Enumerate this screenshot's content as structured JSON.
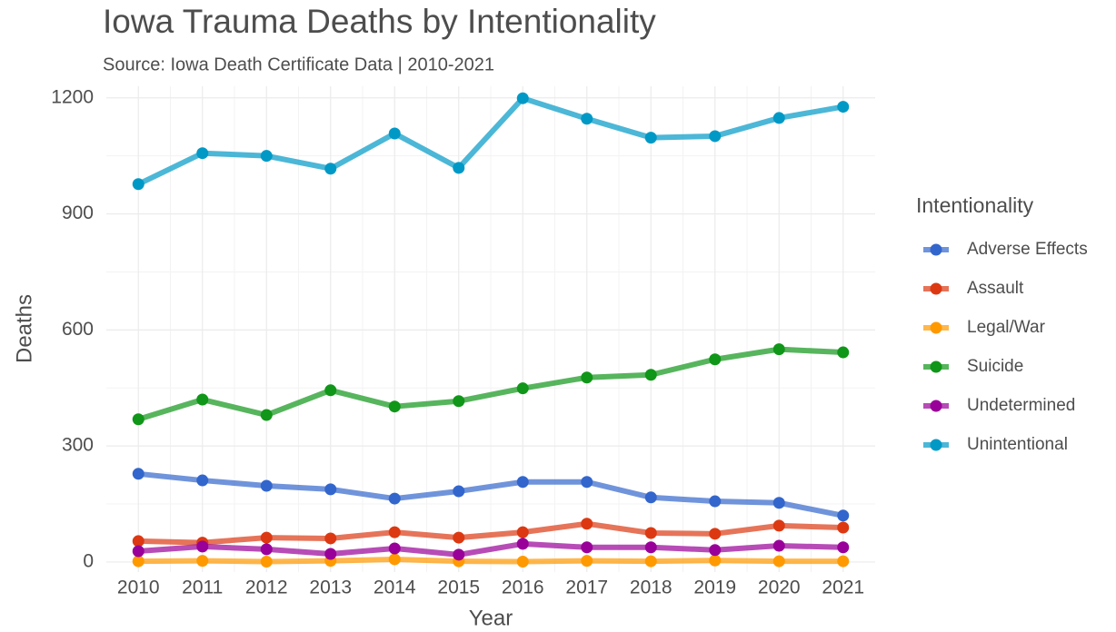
{
  "chart_data": {
    "type": "line",
    "title": "Iowa Trauma Deaths by Intentionality",
    "subtitle": "Source: Iowa Death Certificate Data | 2010-2021",
    "x_label": "Year",
    "y_label": "Deaths",
    "x": [
      2010,
      2011,
      2012,
      2013,
      2014,
      2015,
      2016,
      2017,
      2018,
      2019,
      2020,
      2021
    ],
    "xlim": [
      2009.5,
      2021.5
    ],
    "xticks": [
      2010,
      2011,
      2012,
      2013,
      2014,
      2015,
      2016,
      2017,
      2018,
      2019,
      2020,
      2021
    ],
    "ylim": [
      -26,
      1230
    ],
    "yticks": [
      0,
      300,
      600,
      900,
      1200
    ],
    "grid": true,
    "legend": {
      "title": "Intentionality",
      "position": "right"
    },
    "series": [
      {
        "name": "Adverse Effects",
        "color": "#3366cc",
        "values": [
          228,
          211,
          197,
          188,
          164,
          183,
          207,
          207,
          167,
          157,
          153,
          120
        ]
      },
      {
        "name": "Assault",
        "color": "#dc3912",
        "values": [
          54,
          50,
          63,
          61,
          77,
          63,
          77,
          99,
          75,
          73,
          94,
          89
        ]
      },
      {
        "name": "Legal/War",
        "color": "#ff9900",
        "values": [
          2,
          3,
          1,
          3,
          7,
          2,
          1,
          3,
          2,
          4,
          2,
          2
        ]
      },
      {
        "name": "Suicide",
        "color": "#109618",
        "values": [
          369,
          420,
          380,
          444,
          402,
          416,
          449,
          477,
          484,
          524,
          550,
          542
        ]
      },
      {
        "name": "Undetermined",
        "color": "#990099",
        "values": [
          28,
          40,
          33,
          21,
          35,
          19,
          47,
          38,
          38,
          31,
          42,
          38
        ]
      },
      {
        "name": "Unintentional",
        "color": "#0099c6",
        "values": [
          977,
          1057,
          1050,
          1017,
          1108,
          1019,
          1199,
          1146,
          1097,
          1101,
          1148,
          1177
        ]
      }
    ]
  }
}
